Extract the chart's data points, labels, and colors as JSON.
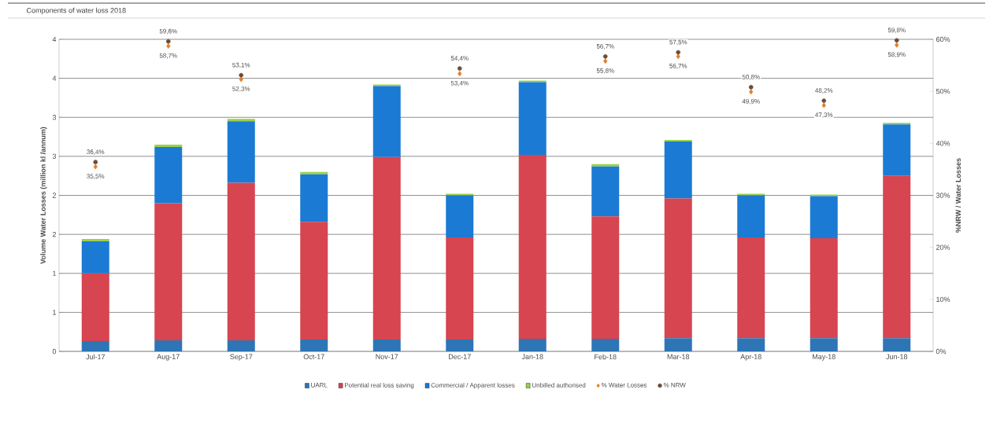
{
  "chart_data": {
    "type": "bar",
    "title": "Components of water loss 2018",
    "ylabel": "Volume Water Losses (million kl /annum)",
    "y2label": "%NRW / Water Losses",
    "categories": [
      "Jul-17",
      "Aug-17",
      "Sep-17",
      "Oct-17",
      "Nov-17",
      "Dec-17",
      "Jan-18",
      "Feb-18",
      "Mar-18",
      "Apr-18",
      "May-18",
      "Jun-18"
    ],
    "stacked": true,
    "grid": "y",
    "legend": "bottom",
    "ylim": [
      0,
      4
    ],
    "yticks": [
      {
        "value": 0,
        "label": "0"
      },
      {
        "value": 0.5,
        "label": "1"
      },
      {
        "value": 1,
        "label": "1"
      },
      {
        "value": 1.5,
        "label": "2"
      },
      {
        "value": 2,
        "label": "2"
      },
      {
        "value": 2.5,
        "label": "3"
      },
      {
        "value": 3,
        "label": "3"
      },
      {
        "value": 3.5,
        "label": "4"
      },
      {
        "value": 4,
        "label": "4"
      }
    ],
    "y2lim": [
      0,
      60
    ],
    "y2ticks": [
      {
        "value": 0,
        "label": "0%"
      },
      {
        "value": 10,
        "label": "10%"
      },
      {
        "value": 20,
        "label": "20%"
      },
      {
        "value": 30,
        "label": "30%"
      },
      {
        "value": 40,
        "label": "40%"
      },
      {
        "value": 50,
        "label": "50%"
      },
      {
        "value": 60,
        "label": "60%"
      }
    ],
    "series": [
      {
        "name": "UARL",
        "color": "#2e75b6",
        "values": [
          0.13,
          0.14,
          0.14,
          0.15,
          0.15,
          0.15,
          0.16,
          0.16,
          0.17,
          0.17,
          0.17,
          0.17
        ]
      },
      {
        "name": "Potential real loss saving",
        "color": "#d64550",
        "values": [
          0.87,
          1.76,
          2.02,
          1.51,
          2.34,
          1.31,
          2.36,
          1.57,
          1.79,
          1.29,
          1.28,
          2.08
        ]
      },
      {
        "name": "Commercial / Apparent losses",
        "color": "#1b7bd4",
        "values": [
          0.41,
          0.72,
          0.79,
          0.61,
          0.91,
          0.54,
          0.93,
          0.64,
          0.73,
          0.54,
          0.54,
          0.66
        ]
      },
      {
        "name": "Unbilled authorised",
        "color": "#9bd14b",
        "values": [
          0.03,
          0.03,
          0.03,
          0.03,
          0.02,
          0.02,
          0.02,
          0.03,
          0.02,
          0.02,
          0.02,
          0.02
        ]
      },
      {
        "name": "% Water Losses",
        "type": "scatter",
        "axis": "y2",
        "marker": "diamond",
        "color": "#e67e22",
        "values": [
          35.5,
          58.7,
          52.3,
          null,
          null,
          53.4,
          null,
          55.8,
          56.7,
          49.9,
          47.3,
          58.9
        ],
        "value_labels": [
          "35,5%",
          "58,7%",
          "52,3%",
          null,
          null,
          "53,4%",
          null,
          "55,8%",
          "56,7%",
          "49,9%",
          "47,3%",
          "58,9%"
        ]
      },
      {
        "name": "% NRW",
        "type": "scatter",
        "axis": "y2",
        "marker": "circle",
        "color": "#6d4c3d",
        "values": [
          36.4,
          59.6,
          53.1,
          null,
          null,
          54.4,
          null,
          56.7,
          57.5,
          50.8,
          48.2,
          59.8
        ],
        "value_labels": [
          "36,4%",
          "59,6%",
          "53,1%",
          null,
          null,
          "54,4%",
          null,
          "56,7%",
          "57,5%",
          "50,8%",
          "48,2%",
          "59,8%"
        ]
      }
    ]
  }
}
